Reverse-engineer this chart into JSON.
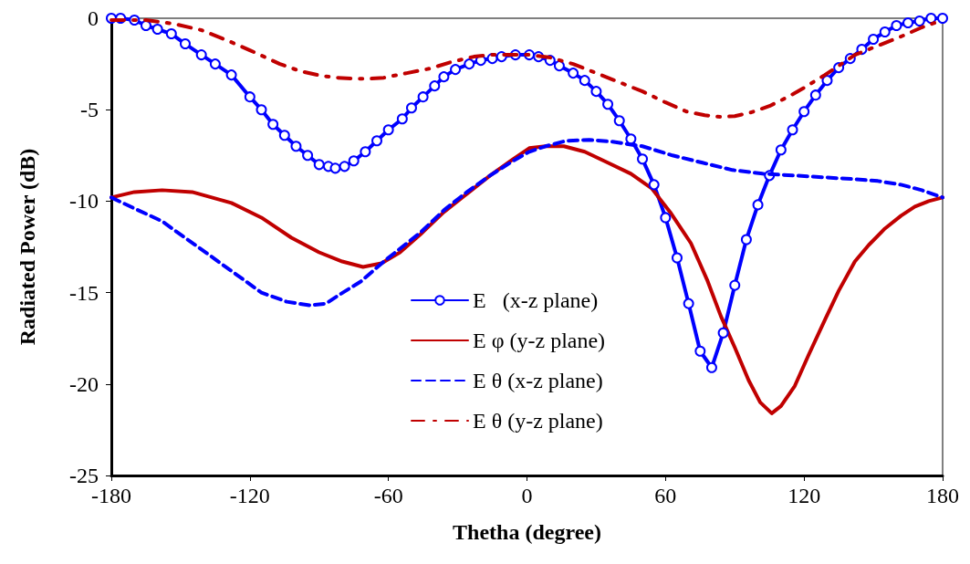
{
  "chart_data": {
    "type": "line",
    "xlabel": "Thetha (degree)",
    "ylabel": "Radiated Power (dB)",
    "xlim": [
      -180,
      180
    ],
    "xticks": [
      -180,
      -120,
      -60,
      0,
      60,
      120,
      180
    ],
    "ylim": [
      -25,
      0
    ],
    "yticks": [
      -25,
      -20,
      -15,
      -10,
      -5,
      0
    ],
    "grid": false,
    "legend": "bottom",
    "series": [
      {
        "name": "E   (x-z plane)",
        "color": "#0000ff",
        "marker": "circle",
        "line_style": "solid",
        "x": [
          -180,
          -176,
          -170,
          -165,
          -160,
          -154,
          -148,
          -141,
          -135,
          -128,
          -120,
          -115,
          -110,
          -105,
          -100,
          -95,
          -90,
          -86,
          -83,
          -79,
          -75,
          -70,
          -65,
          -60,
          -54,
          -50,
          -45,
          -40,
          -36,
          -31,
          -25,
          -20,
          -15,
          -11,
          -5,
          1,
          5,
          10,
          14,
          20,
          25,
          30,
          35,
          40,
          45,
          50,
          55,
          60,
          65,
          70,
          75,
          80,
          85,
          90,
          95,
          100,
          105,
          110,
          115,
          120,
          125,
          130,
          135,
          140,
          145,
          150,
          155,
          160,
          165,
          170,
          175,
          180
        ],
        "values": [
          0,
          0,
          -0.1,
          -0.4,
          -0.6,
          -0.85,
          -1.4,
          -2.0,
          -2.5,
          -3.1,
          -4.3,
          -5.0,
          -5.8,
          -6.4,
          -7.0,
          -7.5,
          -8.0,
          -8.1,
          -8.2,
          -8.1,
          -7.8,
          -7.3,
          -6.7,
          -6.1,
          -5.5,
          -4.9,
          -4.3,
          -3.7,
          -3.2,
          -2.8,
          -2.5,
          -2.3,
          -2.2,
          -2.1,
          -2.0,
          -2.0,
          -2.1,
          -2.3,
          -2.6,
          -3.0,
          -3.4,
          -4.0,
          -4.7,
          -5.6,
          -6.6,
          -7.7,
          -9.1,
          -10.9,
          -13.1,
          -15.6,
          -18.2,
          -19.1,
          -17.2,
          -14.6,
          -12.1,
          -10.2,
          -8.6,
          -7.2,
          -6.1,
          -5.1,
          -4.2,
          -3.4,
          -2.7,
          -2.2,
          -1.7,
          -1.15,
          -0.75,
          -0.4,
          -0.25,
          -0.15,
          0,
          0
        ]
      },
      {
        "name": "E φ (y-z plane)",
        "color": "#c00000",
        "marker": "none",
        "line_style": "solid",
        "x": [
          -180,
          -170,
          -158,
          -145,
          -128,
          -115,
          -102,
          -90,
          -80,
          -71,
          -63,
          -55,
          -46,
          -36,
          -26,
          -16,
          -6,
          1,
          8,
          16,
          25,
          35,
          45,
          54,
          62,
          71,
          78,
          84,
          90,
          96,
          101,
          106,
          110,
          116,
          122,
          129,
          135,
          142,
          148,
          155,
          162,
          168,
          174,
          180
        ],
        "values": [
          -9.8,
          -9.5,
          -9.4,
          -9.5,
          -10.1,
          -10.9,
          -12.0,
          -12.8,
          -13.3,
          -13.6,
          -13.4,
          -12.8,
          -11.8,
          -10.6,
          -9.6,
          -8.6,
          -7.7,
          -7.1,
          -7.0,
          -7.0,
          -7.3,
          -7.9,
          -8.5,
          -9.3,
          -10.6,
          -12.3,
          -14.3,
          -16.3,
          -18.0,
          -19.8,
          -21.0,
          -21.6,
          -21.2,
          -20.1,
          -18.4,
          -16.5,
          -14.9,
          -13.3,
          -12.4,
          -11.5,
          -10.8,
          -10.3,
          -10.0,
          -9.8
        ]
      },
      {
        "name": "E θ (x-z plane)",
        "color": "#0000ff",
        "marker": "none",
        "line_style": "dashed",
        "x": [
          -180,
          -170,
          -158,
          -147,
          -137,
          -126,
          -115,
          -104,
          -94,
          -87,
          -81,
          -72,
          -62,
          -55,
          -46,
          -36,
          -26,
          -16,
          -6,
          1,
          8,
          17,
          27,
          37,
          50,
          63,
          76,
          89,
          102,
          116,
          129,
          142,
          152,
          162,
          171,
          180
        ],
        "values": [
          -9.8,
          -10.4,
          -11.1,
          -12.1,
          -13.0,
          -14.0,
          -15.0,
          -15.5,
          -15.7,
          -15.6,
          -15.1,
          -14.4,
          -13.3,
          -12.6,
          -11.7,
          -10.5,
          -9.5,
          -8.6,
          -7.8,
          -7.3,
          -7.0,
          -6.7,
          -6.65,
          -6.75,
          -7.0,
          -7.5,
          -7.9,
          -8.3,
          -8.5,
          -8.6,
          -8.7,
          -8.8,
          -8.9,
          -9.1,
          -9.4,
          -9.8
        ]
      },
      {
        "name": "E θ (y-z plane)",
        "color": "#c00000",
        "marker": "none",
        "line_style": "dashdot",
        "x": [
          -180,
          -165,
          -153,
          -141,
          -130,
          -120,
          -107,
          -98,
          -89,
          -82,
          -75,
          -68,
          -62,
          -52,
          -42,
          -33,
          -23,
          -16,
          -10,
          1,
          10,
          20,
          30,
          40,
          50,
          60,
          69,
          77,
          84,
          90,
          97,
          105,
          113,
          120,
          129,
          135,
          142,
          152,
          162,
          171,
          180
        ],
        "values": [
          -0.1,
          -0.1,
          -0.3,
          -0.65,
          -1.2,
          -1.75,
          -2.5,
          -2.9,
          -3.15,
          -3.25,
          -3.3,
          -3.3,
          -3.25,
          -3.0,
          -2.75,
          -2.4,
          -2.1,
          -2.0,
          -2.0,
          -2.0,
          -2.15,
          -2.5,
          -3.0,
          -3.5,
          -4.0,
          -4.6,
          -5.1,
          -5.3,
          -5.4,
          -5.35,
          -5.15,
          -4.8,
          -4.3,
          -3.8,
          -3.1,
          -2.6,
          -2.0,
          -1.5,
          -1.0,
          -0.5,
          -0.1
        ]
      }
    ]
  }
}
